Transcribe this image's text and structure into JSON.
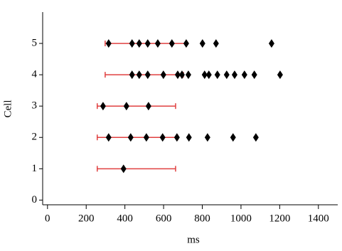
{
  "chart_data": {
    "type": "scatter",
    "xlabel": "ms",
    "ylabel": "Cell",
    "xlim": [
      -25,
      1500
    ],
    "xticks": [
      0,
      200,
      400,
      600,
      800,
      1000,
      1200,
      1400
    ],
    "ylim": [
      -0.15,
      6
    ],
    "yticks": [
      0,
      1,
      2,
      3,
      4,
      5
    ],
    "point_color": "#000000",
    "range_color": "#e04040",
    "points": {
      "x": [
        316,
        437,
        474,
        518,
        570,
        643,
        717,
        801,
        871,
        1158,
        437,
        474,
        518,
        599,
        673,
        695,
        728,
        812,
        834,
        878,
        926,
        967,
        1018,
        1069,
        1202,
        287,
        408,
        522,
        316,
        430,
        511,
        595,
        669,
        731,
        827,
        959,
        1077,
        393
      ],
      "y": [
        5,
        5,
        5,
        5,
        5,
        5,
        5,
        5,
        5,
        5,
        4,
        4,
        4,
        4,
        4,
        4,
        4,
        4,
        4,
        4,
        4,
        4,
        4,
        4,
        4,
        3,
        3,
        3,
        2,
        2,
        2,
        2,
        2,
        2,
        2,
        2,
        2,
        1
      ]
    },
    "ranges": {
      "y": [
        5,
        4,
        3,
        2,
        1
      ],
      "low": [
        298,
        298,
        257,
        257,
        257
      ],
      "high": [
        717,
        702,
        662,
        673,
        662
      ]
    }
  }
}
